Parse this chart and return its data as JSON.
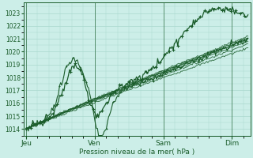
{
  "bg_color": "#cceee8",
  "grid_color": "#aad8ce",
  "line_color": "#1a5c2a",
  "ylabel_text": "Pression niveau de la mer( hPa )",
  "xticklabels": [
    "Jeu",
    "Ven",
    "Sam",
    "Dim"
  ],
  "xtick_positions": [
    0,
    3,
    6,
    9
  ],
  "ylim": [
    1013.5,
    1023.8
  ],
  "xlim": [
    -0.1,
    9.8
  ],
  "yticks": [
    1014,
    1015,
    1016,
    1017,
    1018,
    1019,
    1020,
    1021,
    1022,
    1023
  ],
  "num_ensemble": 7,
  "ensemble_ends": [
    1020.3,
    1020.6,
    1020.8,
    1021.0,
    1021.1,
    1021.2,
    1021.0
  ]
}
